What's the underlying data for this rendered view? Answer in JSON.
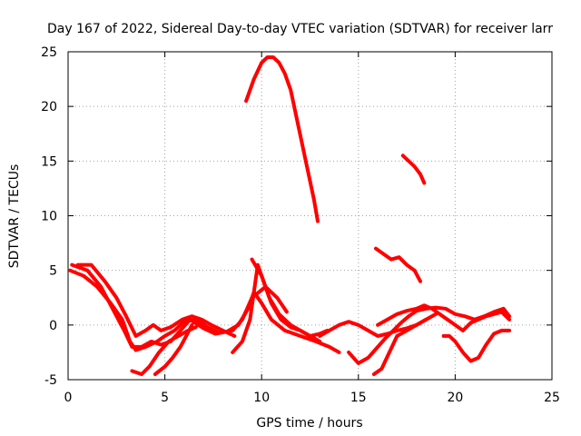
{
  "chart_data": {
    "type": "line",
    "title": "Day 167 of 2022, Sidereal Day-to-day VTEC variation (SDTVAR) for receiver larr",
    "xlabel": "GPS time / hours",
    "ylabel": "SDTVAR / TECUs",
    "xlim": [
      0,
      25
    ],
    "ylim": [
      -5,
      25
    ],
    "xticks": [
      0,
      5,
      10,
      15,
      20,
      25
    ],
    "yticks": [
      -5,
      0,
      5,
      10,
      15,
      20,
      25
    ],
    "xtick_labels": [
      "0",
      "5",
      "10",
      "15",
      "20",
      "25"
    ],
    "ytick_labels": [
      "-5",
      "0",
      "5",
      "10",
      "15",
      "20",
      "25"
    ],
    "grid": true,
    "marker": "+",
    "color": "#ff0000",
    "series": [
      {
        "name": "s1",
        "x": [
          0.1,
          0.8,
          1.5,
          2.2,
          2.8,
          3.2,
          3.5,
          4.0,
          4.6,
          5.0,
          5.5,
          6.0,
          6.6,
          7.2,
          7.8,
          8.5,
          9.0,
          9.5,
          10.2,
          10.8,
          11.3
        ],
        "y": [
          5.0,
          4.5,
          3.5,
          2.0,
          0.5,
          -1.5,
          -2.3,
          -2.0,
          -1.5,
          -1.0,
          -0.5,
          0.3,
          0.5,
          -0.2,
          -0.7,
          -0.5,
          0.5,
          2.5,
          3.5,
          2.5,
          1.2
        ]
      },
      {
        "name": "s2",
        "x": [
          0.2,
          1.0,
          1.7,
          2.3,
          2.9,
          3.3,
          3.8,
          4.3,
          4.8,
          5.3,
          5.8,
          6.3,
          7.0,
          7.6,
          8.2,
          8.8,
          9.3,
          9.6,
          10.0,
          10.5,
          11.2,
          12.0,
          12.8,
          13.5,
          14.0
        ],
        "y": [
          5.5,
          5.0,
          3.5,
          1.5,
          -0.5,
          -2.0,
          -2.0,
          -1.5,
          -1.8,
          -1.5,
          -0.5,
          0.5,
          -0.3,
          -0.8,
          -0.6,
          0.0,
          1.5,
          3.0,
          2.0,
          0.5,
          -0.5,
          -1.0,
          -1.5,
          -2.0,
          -2.5
        ]
      },
      {
        "name": "s3",
        "x": [
          0.5,
          1.2,
          1.9,
          2.5,
          3.0,
          3.5,
          4.0,
          4.4,
          4.8,
          5.3,
          5.9,
          6.4,
          6.9,
          7.4,
          8.0,
          8.6
        ],
        "y": [
          5.5,
          5.5,
          4.0,
          2.5,
          0.8,
          -1.0,
          -0.5,
          0.0,
          -0.5,
          -0.2,
          0.5,
          0.8,
          0.5,
          0.0,
          -0.5,
          -1.0
        ]
      },
      {
        "name": "s4",
        "x": [
          3.3,
          3.8,
          4.2,
          4.7,
          5.2,
          5.7,
          6.2,
          6.6
        ],
        "y": [
          -4.2,
          -4.5,
          -3.8,
          -2.5,
          -1.5,
          -1.0,
          -0.5,
          -0.2
        ]
      },
      {
        "name": "s5",
        "x": [
          4.5,
          5.0,
          5.4,
          5.8,
          6.1,
          6.4
        ],
        "y": [
          -4.5,
          -3.8,
          -3.0,
          -2.0,
          -1.0,
          0.0
        ]
      },
      {
        "name": "s6",
        "x": [
          8.5,
          9.0,
          9.4,
          9.6,
          9.8,
          10.0,
          10.4,
          10.9,
          11.5,
          12.0,
          12.5,
          13.0,
          13.4
        ],
        "y": [
          -2.5,
          -1.5,
          0.5,
          3.0,
          5.5,
          4.5,
          2.5,
          1.0,
          0.0,
          -0.5,
          -1.0,
          -0.8,
          -0.5
        ]
      },
      {
        "name": "s7",
        "x": [
          9.5,
          10.0,
          10.5,
          11.0,
          11.5,
          12.0,
          12.5,
          13.0
        ],
        "y": [
          6.0,
          4.5,
          2.0,
          0.5,
          -0.2,
          -0.5,
          -1.0,
          -1.5
        ]
      },
      {
        "name": "s8",
        "x": [
          9.2,
          9.6,
          10.0,
          10.3,
          10.6,
          10.9,
          11.2,
          11.5,
          11.8,
          12.1,
          12.4,
          12.7,
          12.9
        ],
        "y": [
          20.5,
          22.5,
          24.0,
          24.5,
          24.5,
          24.0,
          23.0,
          21.5,
          19.0,
          16.5,
          14.0,
          11.5,
          9.5
        ]
      },
      {
        "name": "s9",
        "x": [
          13.0,
          13.5,
          14.0,
          14.5,
          15.0,
          15.5,
          16.0,
          16.5,
          17.0,
          17.5,
          18.0,
          18.5,
          19.0
        ],
        "y": [
          -1.0,
          -0.5,
          0.0,
          0.3,
          0.0,
          -0.5,
          -1.0,
          -0.8,
          -0.5,
          -0.3,
          0.0,
          0.5,
          1.0
        ]
      },
      {
        "name": "s10",
        "x": [
          14.5,
          15.0,
          15.5,
          16.0,
          16.4,
          16.8,
          17.2,
          17.6,
          18.0,
          18.5,
          19.0,
          19.5,
          20.0,
          20.5,
          21.0,
          21.5,
          22.0,
          22.5,
          22.8
        ],
        "y": [
          -2.5,
          -3.5,
          -3.0,
          -2.0,
          -1.2,
          -0.5,
          0.2,
          0.8,
          1.3,
          1.5,
          1.6,
          1.5,
          1.0,
          0.8,
          0.5,
          0.8,
          1.2,
          1.5,
          0.8
        ]
      },
      {
        "name": "s11",
        "x": [
          15.8,
          16.2,
          16.6,
          17.0,
          17.5,
          18.0,
          18.5
        ],
        "y": [
          -4.5,
          -4.0,
          -2.5,
          -1.0,
          -0.5,
          0.0,
          0.5
        ]
      },
      {
        "name": "s12",
        "x": [
          16.0,
          16.5,
          17.0,
          17.5,
          18.0,
          18.4,
          18.8,
          19.2,
          19.6,
          20.0,
          20.4,
          20.8,
          21.2,
          21.6,
          22.0,
          22.4,
          22.8
        ],
        "y": [
          0.0,
          0.5,
          1.0,
          1.3,
          1.5,
          1.8,
          1.5,
          1.0,
          0.5,
          0.0,
          -0.5,
          0.2,
          0.5,
          0.8,
          1.0,
          1.2,
          0.5
        ]
      },
      {
        "name": "s13",
        "x": [
          19.4,
          19.7,
          20.0,
          20.4,
          20.8,
          21.2,
          21.6,
          22.0,
          22.4,
          22.8
        ],
        "y": [
          -1.0,
          -1.0,
          -1.5,
          -2.5,
          -3.3,
          -3.0,
          -1.8,
          -0.8,
          -0.5,
          -0.5
        ]
      },
      {
        "name": "s14",
        "x": [
          17.3,
          17.6,
          17.9,
          18.2,
          18.4
        ],
        "y": [
          15.5,
          15.0,
          14.5,
          13.8,
          13.0
        ]
      },
      {
        "name": "s15",
        "x": [
          15.9,
          16.3,
          16.7,
          17.1,
          17.5,
          17.9,
          18.2
        ],
        "y": [
          7.0,
          6.5,
          6.0,
          6.2,
          5.5,
          5.0,
          4.0
        ]
      }
    ]
  }
}
